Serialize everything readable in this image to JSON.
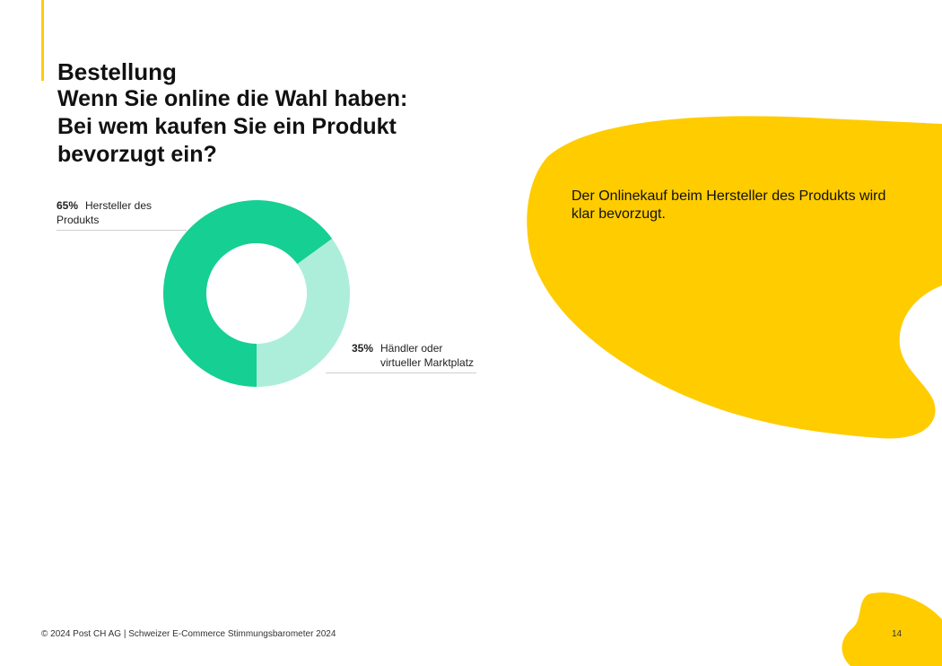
{
  "header": {
    "section_title": "Bestellung",
    "question_lines": [
      "Wenn Sie online die Wahl haben:",
      "Bei wem kaufen Sie ein Produkt",
      "bevorzugt ein?"
    ]
  },
  "callout": {
    "lines": [
      "Der Onlinekauf beim Hersteller des Produkts wird",
      "klar bevorzugt."
    ]
  },
  "chart_data": {
    "type": "pie",
    "variant": "donut",
    "slices": [
      {
        "label": "Hersteller des Produkts",
        "value": 65,
        "value_label": "65%",
        "color": "#16cf93"
      },
      {
        "label": "Händler oder virtueller Marktplatz",
        "label_lines": [
          "Händler oder",
          "virtueller Marktplatz"
        ],
        "value": 35,
        "value_label": "35%",
        "color": "#adeedb"
      }
    ]
  },
  "colors": {
    "accent": "#ffcc00"
  },
  "footer": {
    "copyright": "© 2024 Post CH AG | Schweizer E-Commerce Stimmungsbarometer 2024",
    "page_number": "14"
  }
}
